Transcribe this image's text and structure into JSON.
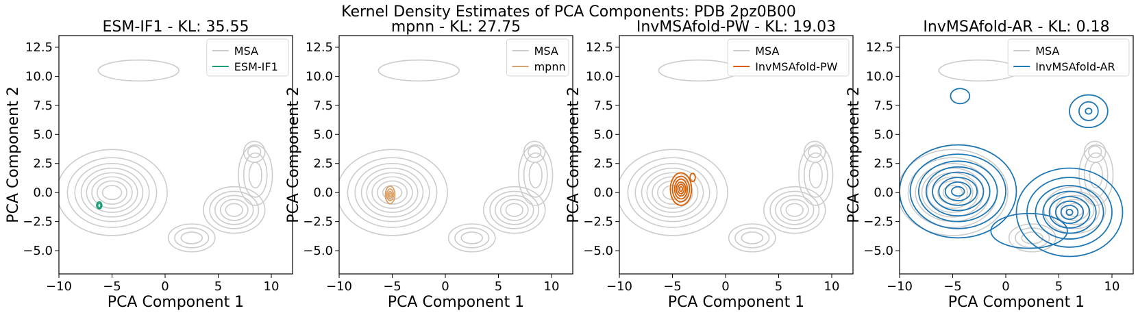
{
  "chart_data": {
    "type": "contour",
    "suptitle": "Kernel Density Estimates of PCA Components: PDB 2pz0B00",
    "xlim": [
      -10,
      12
    ],
    "ylim": [
      -7,
      13.5
    ],
    "xticks": [
      -10,
      -5,
      0,
      5,
      10
    ],
    "yticks": [
      -5.0,
      -2.5,
      0.0,
      2.5,
      5.0,
      7.5,
      10.0,
      12.5
    ],
    "xlabel": "PCA Component 1",
    "ylabel": "PCA Component 2",
    "reference": {
      "name": "MSA",
      "color": "#cccccc",
      "modes": [
        {
          "cx": -5,
          "cy": 0,
          "rx": [
            5.2,
            4.2,
            3.5,
            2.9,
            2.4,
            1.9,
            1.4,
            0.9
          ],
          "ry": [
            3.7,
            3.0,
            2.5,
            2.1,
            1.7,
            1.35,
            1.0,
            0.6
          ]
        },
        {
          "cx": 6.5,
          "cy": -1.5,
          "rx": [
            2.9,
            2.3,
            1.8,
            1.3,
            0.8
          ],
          "ry": [
            2.0,
            1.6,
            1.25,
            0.9,
            0.55
          ]
        },
        {
          "cx": 2.5,
          "cy": -3.9,
          "rx": [
            2.2,
            1.6,
            1.0
          ],
          "ry": [
            1.2,
            0.85,
            0.5
          ]
        },
        {
          "cx": 8.5,
          "cy": 1.5,
          "rx": [
            1.6,
            1.1,
            0.6
          ],
          "ry": [
            2.6,
            1.9,
            1.1
          ]
        },
        {
          "cx": 8.4,
          "cy": 3.5,
          "rx": [
            1.0,
            0.6
          ],
          "ry": [
            0.9,
            0.5
          ]
        },
        {
          "cx": -2.5,
          "cy": 10.5,
          "rx": [
            3.8
          ],
          "ry": [
            0.9
          ]
        }
      ]
    },
    "panels": [
      {
        "title": "ESM-IF1 - KL: 35.55",
        "method": "ESM-IF1",
        "kl": 35.55,
        "color": "#1b9e77",
        "modes": [
          {
            "cx": -6.2,
            "cy": -1.1,
            "rx": [
              0.25,
              0.15
            ],
            "ry": [
              0.3,
              0.18
            ]
          }
        ]
      },
      {
        "title": "mpnn - KL: 27.75",
        "method": "mpnn",
        "kl": 27.75,
        "color": "#d9a16b",
        "modes": [
          {
            "cx": -5.2,
            "cy": -0.2,
            "rx": [
              0.45,
              0.32,
              0.2,
              0.1
            ],
            "ry": [
              0.75,
              0.5,
              0.3,
              0.15
            ]
          }
        ]
      },
      {
        "title": "InvMSAfold-PW - KL: 19.03",
        "method": "InvMSAfold-PW",
        "kl": 19.03,
        "color": "#d95f02",
        "modes": [
          {
            "cx": -4.2,
            "cy": 0.3,
            "rx": [
              1.0,
              0.8,
              0.6,
              0.45,
              0.3,
              0.15
            ],
            "ry": [
              1.4,
              1.1,
              0.85,
              0.6,
              0.4,
              0.2
            ]
          },
          {
            "cx": -3.1,
            "cy": 1.3,
            "rx": [
              0.25
            ],
            "ry": [
              0.35
            ]
          }
        ]
      },
      {
        "title": "InvMSAfold-AR - KL: 0.18",
        "method": "InvMSAfold-AR",
        "kl": 0.18,
        "color": "#1f77b4",
        "modes": [
          {
            "cx": -4.5,
            "cy": 0.1,
            "rx": [
              5.5,
              4.5,
              3.7,
              3.0,
              2.4,
              1.8,
              1.2,
              0.6
            ],
            "ry": [
              4.0,
              3.2,
              2.6,
              2.1,
              1.65,
              1.2,
              0.8,
              0.4
            ]
          },
          {
            "cx": 6.0,
            "cy": -1.7,
            "rx": [
              5.0,
              4.0,
              3.2,
              2.5,
              1.9,
              1.3,
              0.8,
              0.3
            ],
            "ry": [
              3.8,
              3.0,
              2.3,
              1.8,
              1.35,
              0.95,
              0.6,
              0.25
            ]
          },
          {
            "cx": 7.8,
            "cy": 7.0,
            "rx": [
              1.8,
              0.9,
              0.3
            ],
            "ry": [
              1.4,
              0.8,
              0.25
            ]
          },
          {
            "cx": -4.3,
            "cy": 8.3,
            "rx": [
              0.9
            ],
            "ry": [
              0.65
            ]
          },
          {
            "cx": 2.2,
            "cy": -3.3,
            "rx": [
              3.6
            ],
            "ry": [
              1.5
            ]
          }
        ]
      }
    ]
  }
}
